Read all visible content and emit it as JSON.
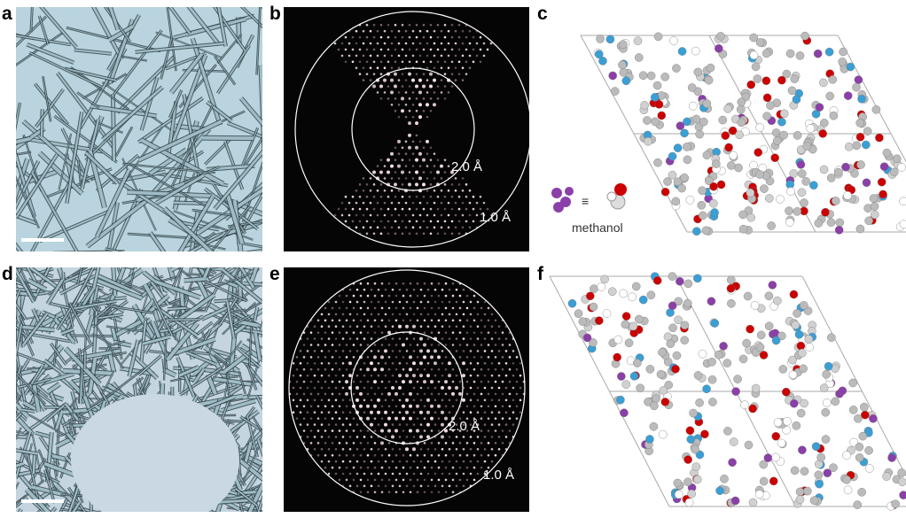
{
  "panels": [
    {
      "label": "a"
    },
    {
      "label": "b",
      "rings": [
        "2.0 Å",
        "1.0 Å"
      ]
    },
    {
      "label": "c",
      "legend": {
        "symbol": "≡",
        "text": "methanol"
      }
    },
    {
      "label": "d"
    },
    {
      "label": "e",
      "rings": [
        "2.0 Å",
        "1.0 Å"
      ]
    },
    {
      "label": "f"
    }
  ]
}
